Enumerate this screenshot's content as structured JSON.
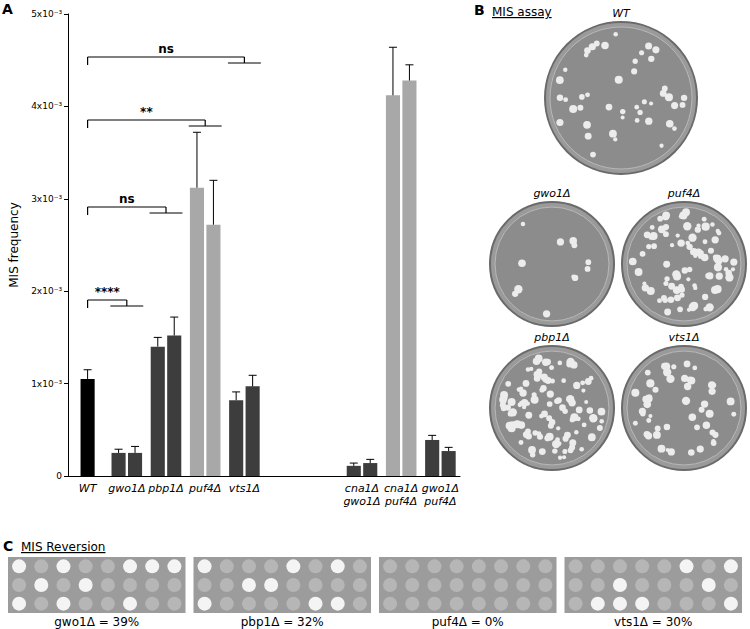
{
  "chart_data": {
    "type": "bar",
    "panel": "A",
    "ylabel": "MIS frequency",
    "categories": [
      "WT",
      "gwo1Δ",
      "pbp1Δ",
      "puf4Δ",
      "vts1Δ",
      null,
      null,
      "cna1Δ\ngwo1Δ",
      "cna1Δ\npuf4Δ",
      "gwo1Δ\npuf4Δ"
    ],
    "series": [
      {
        "values": [
          0.00105,
          0.00025,
          0.0014,
          0.00312,
          0.00082,
          null,
          null,
          0.00011,
          0.00412,
          0.00039
        ],
        "errors": [
          0.0001,
          4e-05,
          0.0001,
          0.0006,
          9e-05,
          null,
          null,
          3e-05,
          0.00052,
          5e-05
        ],
        "colors": [
          "#000000",
          "#3d3d3d",
          "#3d3d3d",
          "#a8a8a8",
          "#3d3d3d",
          null,
          null,
          "#3d3d3d",
          "#a8a8a8",
          "#3d3d3d"
        ]
      },
      {
        "values": [
          null,
          0.00025,
          0.00152,
          0.00272,
          0.00097,
          null,
          null,
          0.00014,
          0.00428,
          0.00027
        ],
        "errors": [
          null,
          7e-05,
          0.0002,
          0.00048,
          0.00012,
          null,
          null,
          4e-05,
          0.00017,
          4e-05
        ],
        "colors": [
          null,
          "#3d3d3d",
          "#3d3d3d",
          "#a8a8a8",
          "#3d3d3d",
          null,
          null,
          "#3d3d3d",
          "#a8a8a8",
          "#3d3d3d"
        ]
      }
    ],
    "ylim": [
      0,
      0.005
    ],
    "yticks": [
      0,
      {
        "value": 0.001,
        "label": "1x10⁻³"
      },
      {
        "value": 0.002,
        "label": "2x10⁻³"
      },
      {
        "value": 0.003,
        "label": "3x10⁻³"
      },
      {
        "value": 0.004,
        "label": "4x10⁻³"
      },
      {
        "value": 0.005,
        "label": "5x10⁻³"
      }
    ],
    "grid": false,
    "annotations": [
      {
        "text": "****",
        "from": "WT",
        "to": "gwo1Δ"
      },
      {
        "text": "ns",
        "from": "WT",
        "to": "pbp1Δ"
      },
      {
        "text": "**",
        "from": "WT",
        "to": "puf4Δ"
      },
      {
        "text": "ns",
        "from": "WT",
        "to": "vts1Δ"
      }
    ]
  },
  "panel_b": {
    "panel": "B",
    "title": "MIS assay",
    "plates": [
      {
        "label": "WT",
        "colonies": 45
      },
      {
        "label": "gwo1Δ",
        "colonies": 12
      },
      {
        "label": "puf4Δ",
        "colonies": 90
      },
      {
        "label": "pbp1Δ",
        "colonies": 110
      },
      {
        "label": "vts1Δ",
        "colonies": 50
      }
    ]
  },
  "panel_c": {
    "panel": "C",
    "title": "MIS Reversion",
    "strips": [
      {
        "label": "gwo1Δ = 39%",
        "value": 39
      },
      {
        "label": "pbp1Δ = 32%",
        "value": 32
      },
      {
        "label": "puf4Δ = 0%",
        "value": 0
      },
      {
        "label": "vts1Δ = 30%",
        "value": 30
      }
    ]
  }
}
